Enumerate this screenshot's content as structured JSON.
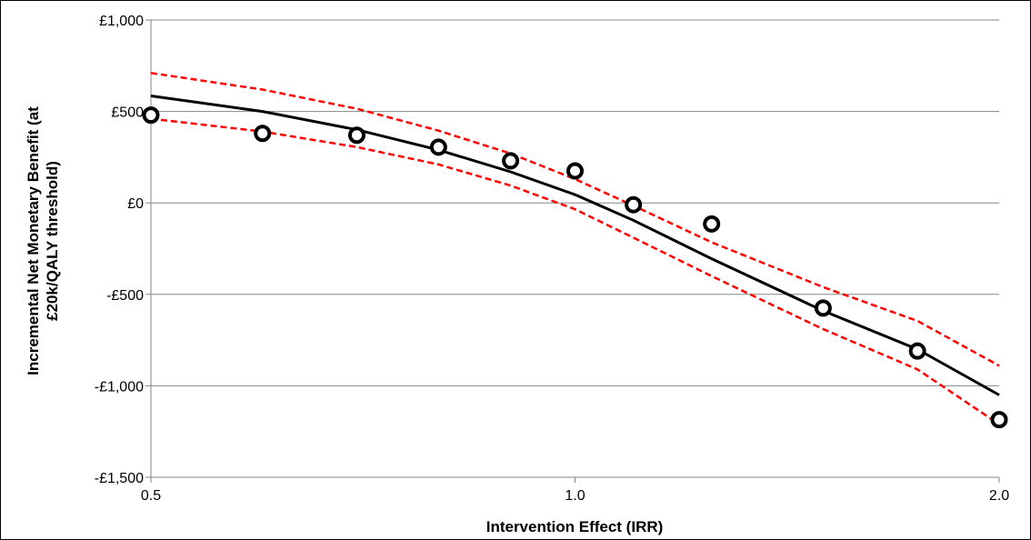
{
  "chart_data": {
    "type": "scatter",
    "xlabel": "Intervention Effect (IRR)",
    "ylabel_lines": [
      "Incremental Net Monetary Benefit (at",
      "£20k/QALY threshold)"
    ],
    "x_scale": "log",
    "xlim": [
      0.5,
      2.0
    ],
    "ylim": [
      -1500,
      1000
    ],
    "x_ticks": [
      0.5,
      1.0,
      2.0
    ],
    "x_tick_labels": [
      "0.5",
      "1.0",
      "2.0"
    ],
    "y_ticks": [
      1000,
      500,
      0,
      -500,
      -1000,
      -1500
    ],
    "y_tick_labels": [
      "£1,000",
      "£500",
      "£0",
      "-£500",
      "-£1,000",
      "-£1,500"
    ],
    "grid": true,
    "legend": "none",
    "series": [
      {
        "kind": "points",
        "x": [
          0.5,
          0.6,
          0.7,
          0.8,
          0.9,
          1.0,
          1.1,
          1.25,
          1.5,
          1.75,
          2.0
        ],
        "y": [
          480,
          380,
          370,
          305,
          230,
          175,
          -10,
          -115,
          -575,
          -810,
          -1185
        ]
      },
      {
        "kind": "fit",
        "x": [
          0.5,
          0.6,
          0.7,
          0.8,
          0.9,
          1.0,
          1.1,
          1.25,
          1.5,
          1.75,
          2.0
        ],
        "y": [
          585,
          500,
          400,
          290,
          170,
          45,
          -95,
          -305,
          -590,
          -800,
          -1050
        ]
      },
      {
        "kind": "upper-bound",
        "x": [
          0.5,
          0.6,
          0.7,
          0.8,
          0.9,
          1.0,
          1.1,
          1.25,
          1.5,
          1.75,
          2.0
        ],
        "y": [
          710,
          620,
          515,
          395,
          270,
          130,
          -15,
          -215,
          -460,
          -645,
          -890
        ]
      },
      {
        "kind": "lower-bound",
        "x": [
          0.5,
          0.6,
          0.7,
          0.8,
          0.9,
          1.0,
          1.1,
          1.25,
          1.5,
          1.75,
          2.0
        ],
        "y": [
          460,
          390,
          305,
          210,
          95,
          -35,
          -190,
          -400,
          -690,
          -910,
          -1210
        ]
      }
    ],
    "colors": {
      "points": "#000000",
      "fit": "#000000",
      "bounds": "#ff0000",
      "grid": "#868686"
    }
  }
}
